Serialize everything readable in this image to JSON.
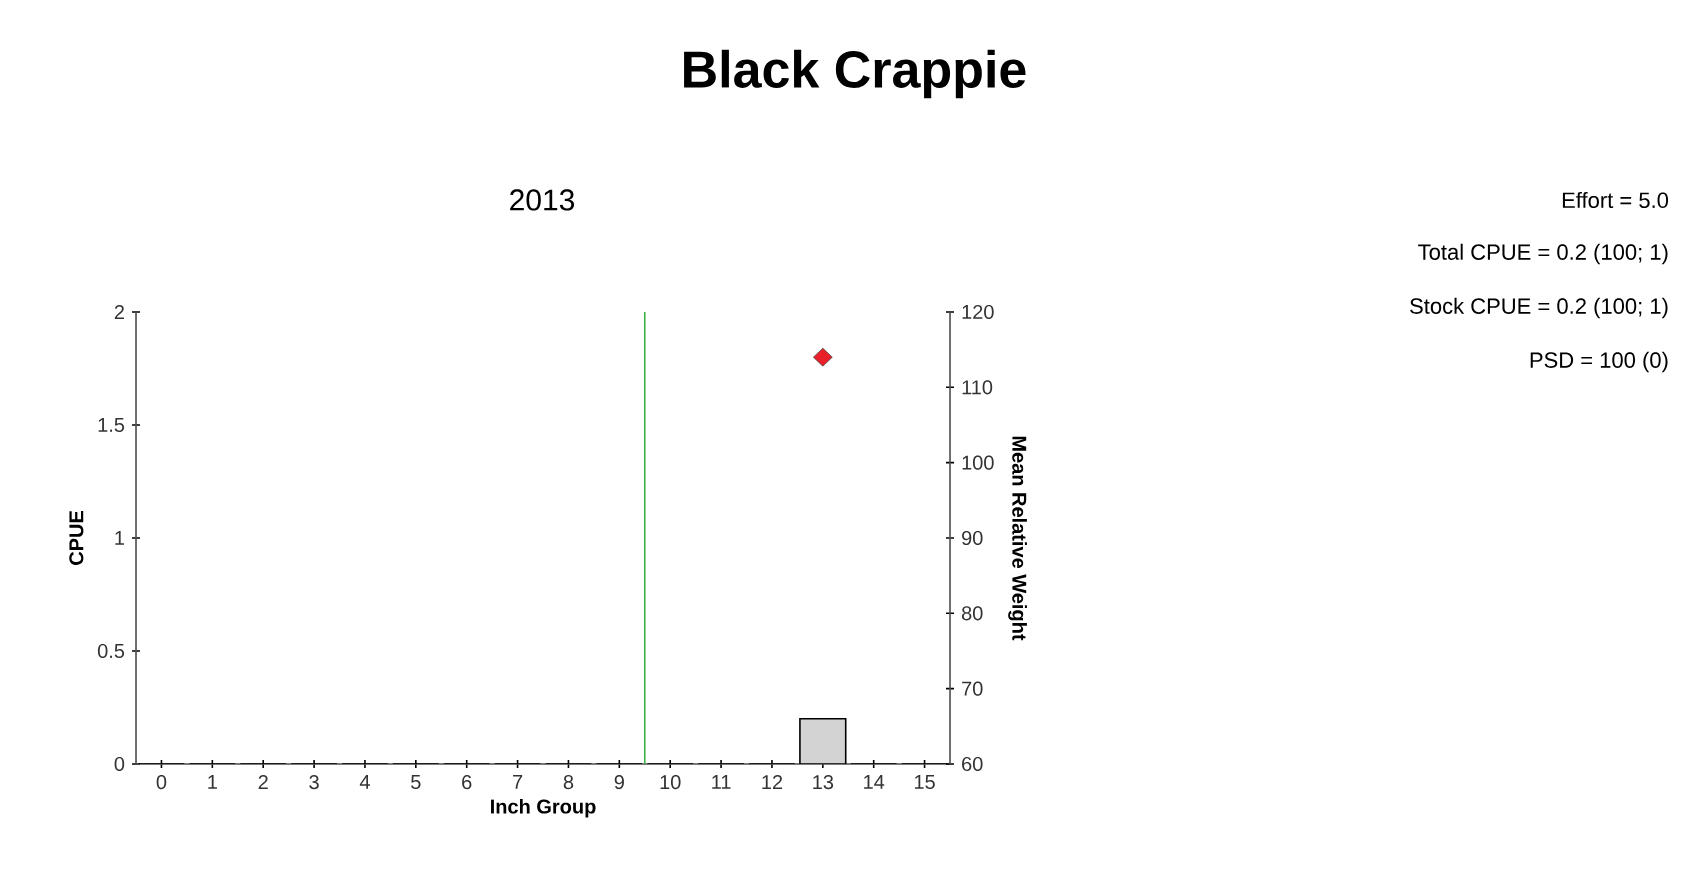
{
  "chart_data": {
    "type": "bar",
    "title": "Black Crappie",
    "subtitle": "2013",
    "xlabel": "Inch Group",
    "ylabel": "CPUE",
    "y2label": "Mean Relative Weight",
    "x": [
      0,
      1,
      2,
      3,
      4,
      5,
      6,
      7,
      8,
      9,
      10,
      11,
      12,
      13,
      14,
      15
    ],
    "series": [
      {
        "color": "#d3d3d3",
        "values": [
          0,
          0,
          0,
          0,
          0,
          0,
          0,
          0,
          0,
          0,
          0,
          0,
          0,
          0.2,
          0,
          0
        ]
      },
      {
        "type": "scatter",
        "axis": "y2",
        "marker": "diamond",
        "color": "#e8202a",
        "x": [
          13
        ],
        "values": [
          114
        ]
      }
    ],
    "xlim": [
      -0.5,
      15.5
    ],
    "xticks": [
      0,
      1,
      2,
      3,
      4,
      5,
      6,
      7,
      8,
      9,
      10,
      11,
      12,
      13,
      14,
      15
    ],
    "ylim": [
      0,
      2
    ],
    "yticks": [
      0,
      0.5,
      1,
      1.5,
      2
    ],
    "y2lim": [
      60,
      120
    ],
    "y2ticks": [
      60,
      70,
      80,
      90,
      100,
      110,
      120
    ],
    "ref_lines": [
      {
        "axis": "x",
        "value": 9.5,
        "color": "#3cb043"
      }
    ],
    "annotations": [
      "Effort = 5.0",
      "Total CPUE = 0.2 (100; 1)",
      "Stock CPUE = 0.2 (100; 1)",
      "PSD = 100 (0)"
    ]
  }
}
